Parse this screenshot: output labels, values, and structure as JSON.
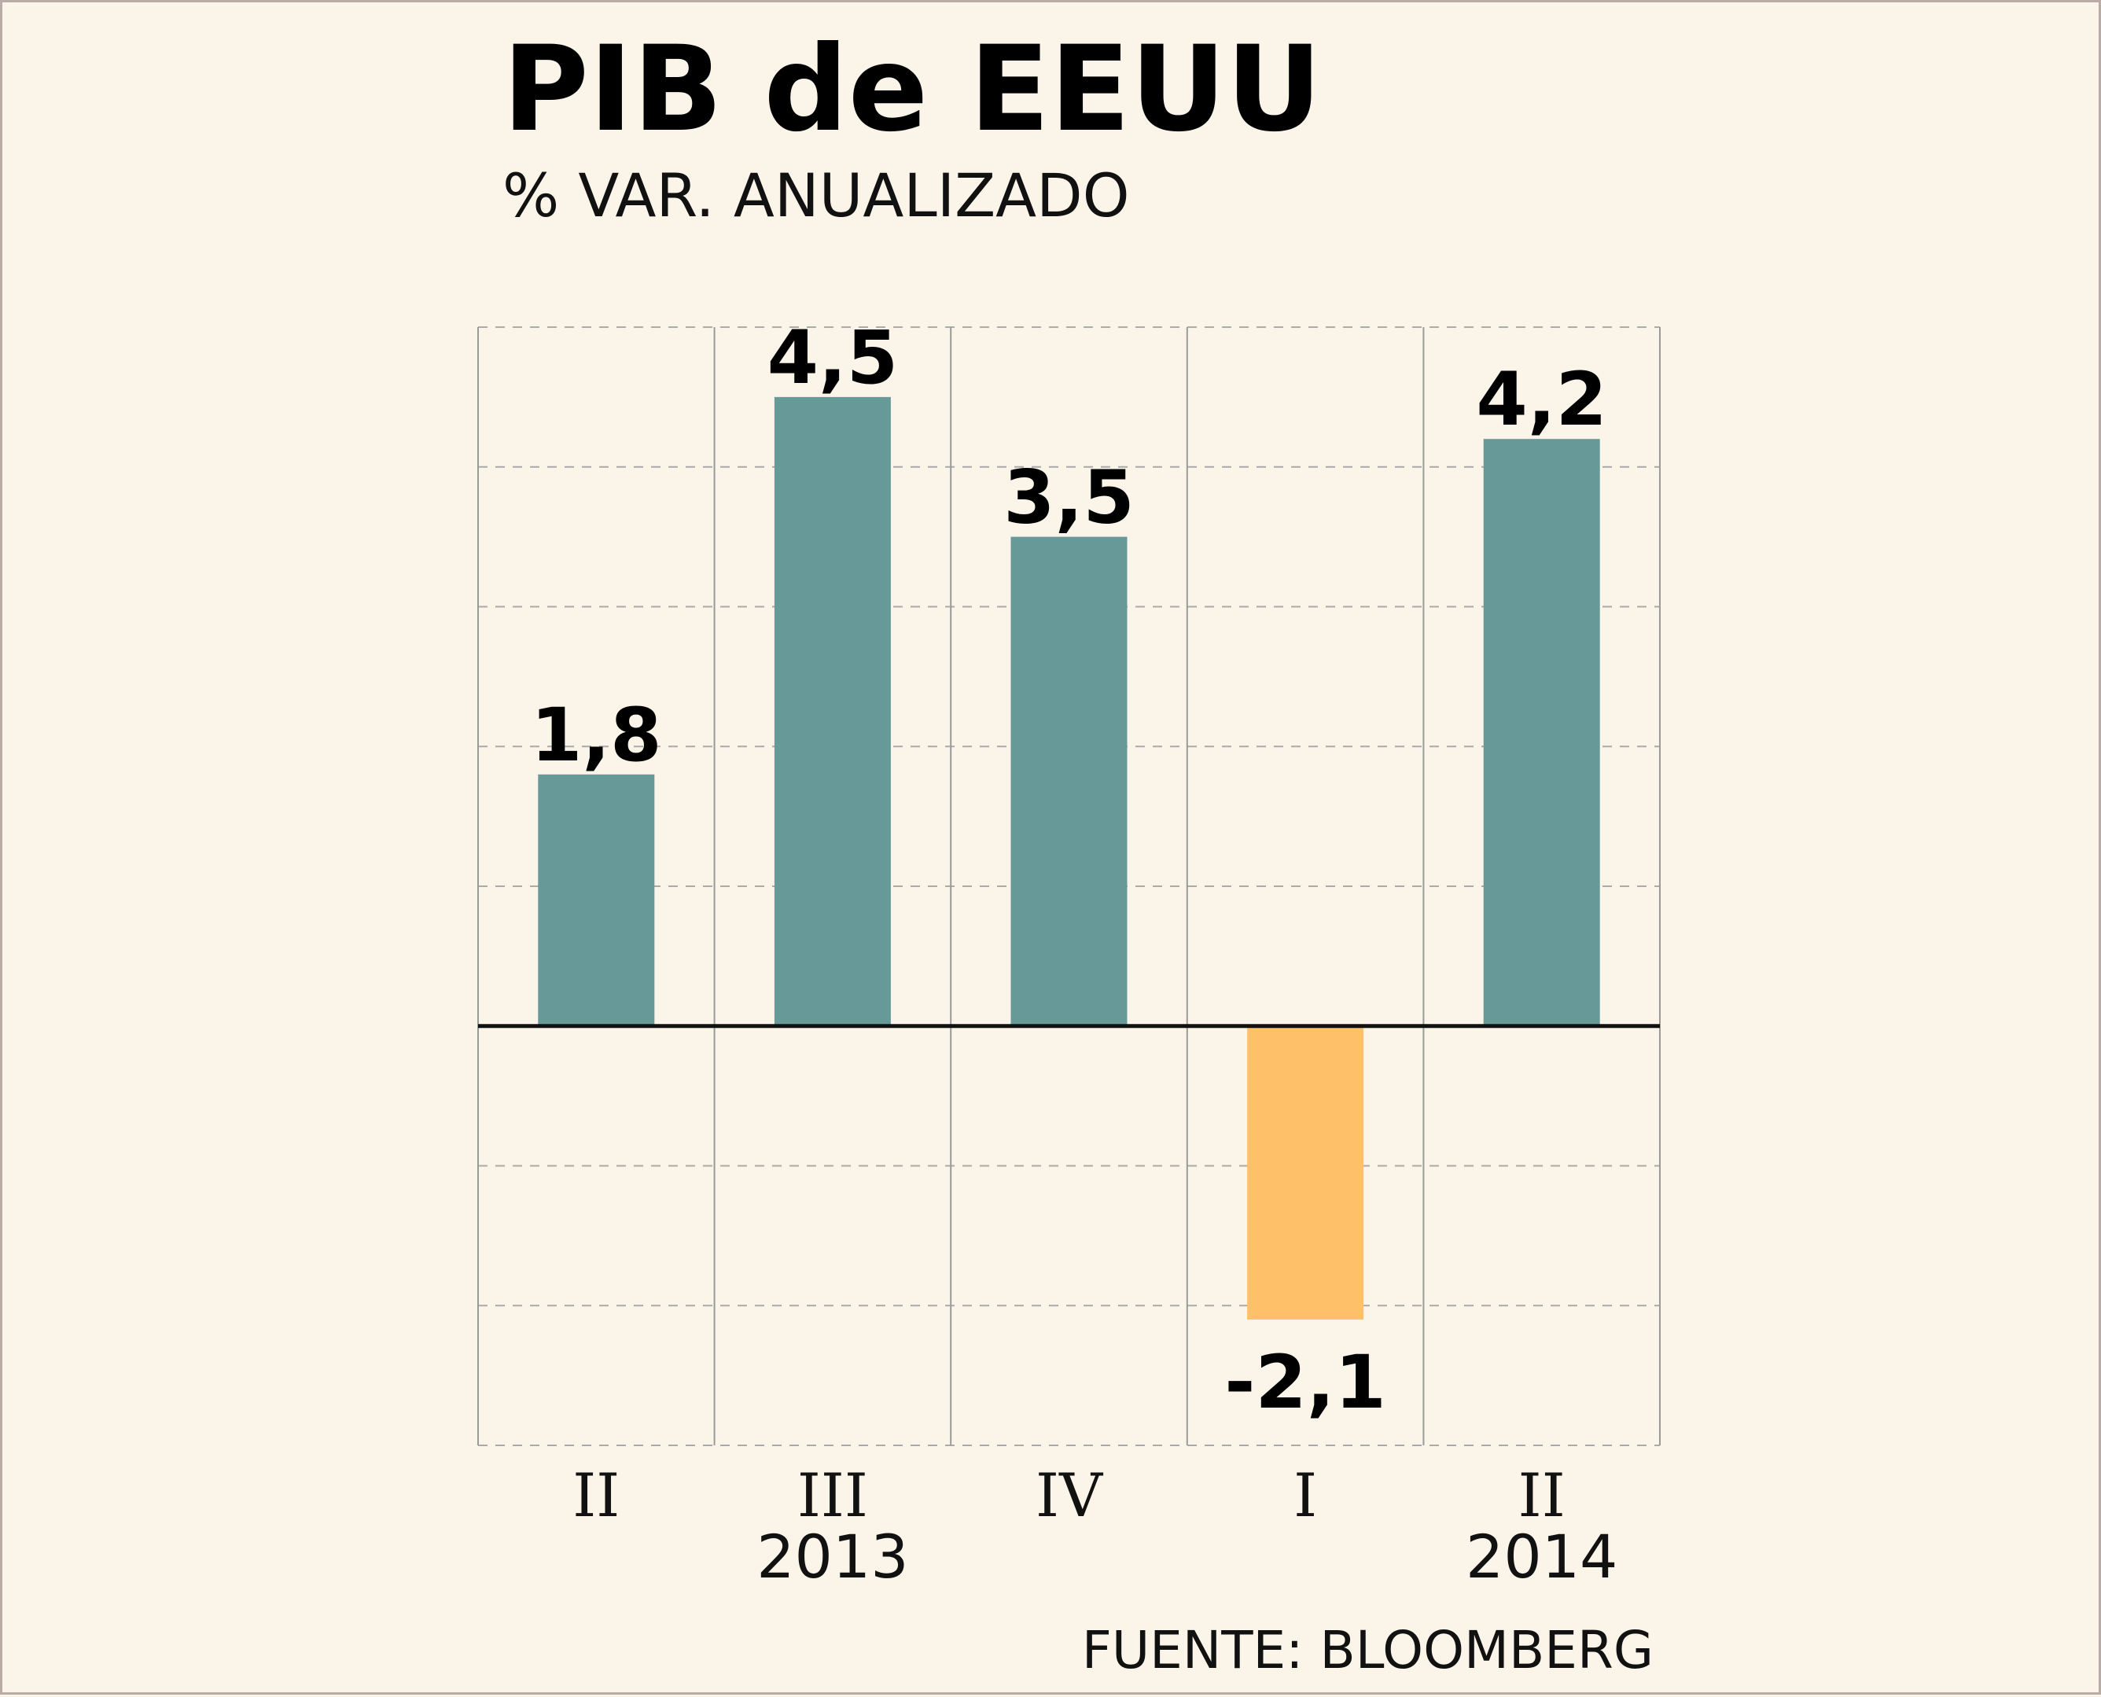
{
  "chart_data": {
    "type": "bar",
    "title": "PIB de EEUU",
    "subtitle": "% VAR. ANUALIZADO",
    "categories": [
      "II",
      "III",
      "IV",
      "I",
      "II"
    ],
    "values": [
      1.8,
      4.5,
      3.5,
      -2.1,
      4.2
    ],
    "value_labels": [
      "1,8",
      "4,5",
      "3,5",
      "-2,1",
      "4,2"
    ],
    "years": [
      {
        "label": "2013",
        "categories": [
          0,
          1,
          2
        ]
      },
      {
        "label": "2014",
        "categories": [
          3,
          4
        ]
      }
    ],
    "ylim": [
      -3,
      5
    ],
    "grid": true,
    "colors": {
      "positive": "#669997",
      "negative": "#fec069",
      "background": "#fbf4e8",
      "grid": "#aaaaaa",
      "zero_line": "#111111"
    },
    "source": "FUENTE: BLOOMBERG"
  }
}
